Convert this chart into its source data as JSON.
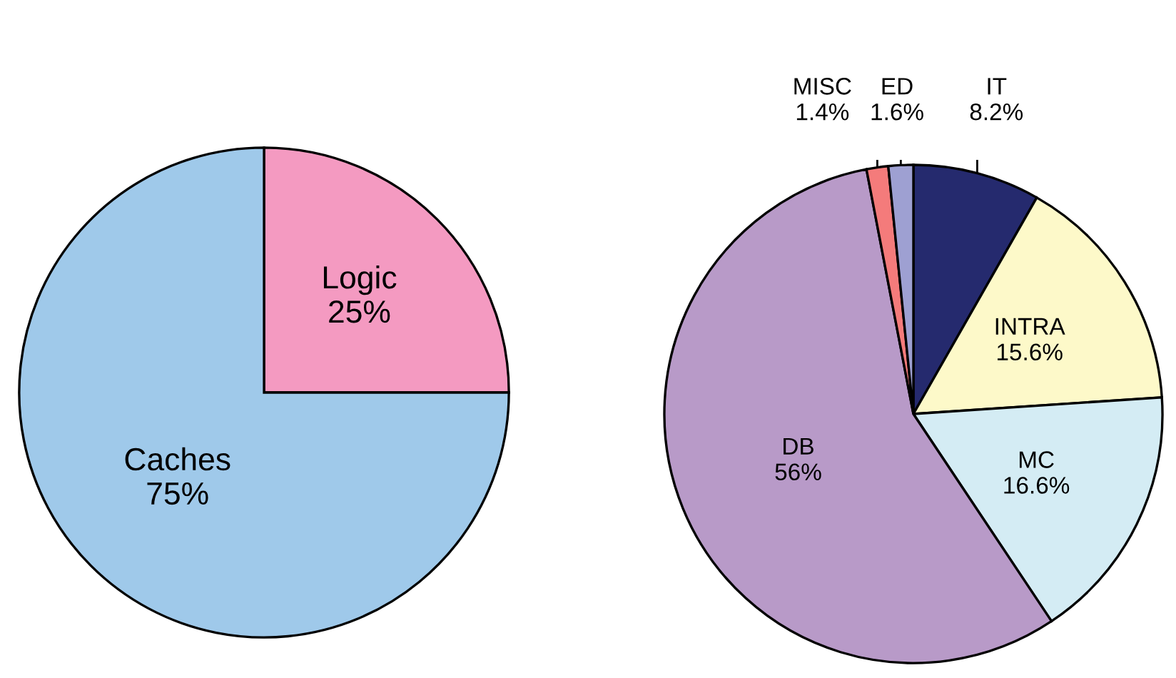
{
  "chart_data": [
    {
      "type": "pie",
      "categories": [
        "Logic",
        "Caches"
      ],
      "values": [
        25,
        75
      ],
      "colors": [
        "#f49ac1",
        "#9fc9ea"
      ],
      "value_labels": [
        "25%",
        "75%"
      ]
    },
    {
      "type": "pie",
      "categories": [
        "IT",
        "INTRA",
        "MC",
        "DB",
        "MISC",
        "ED"
      ],
      "values": [
        8.2,
        15.6,
        16.6,
        56,
        1.4,
        1.6
      ],
      "colors": [
        "#252a6e",
        "#fdf9c9",
        "#d4ecf4",
        "#b89ac8",
        "#f47b7b",
        "#9ea0d2"
      ],
      "value_labels": [
        "8.2%",
        "15.6%",
        "16.6%",
        "56%",
        "1.4%",
        "1.6%"
      ]
    }
  ]
}
